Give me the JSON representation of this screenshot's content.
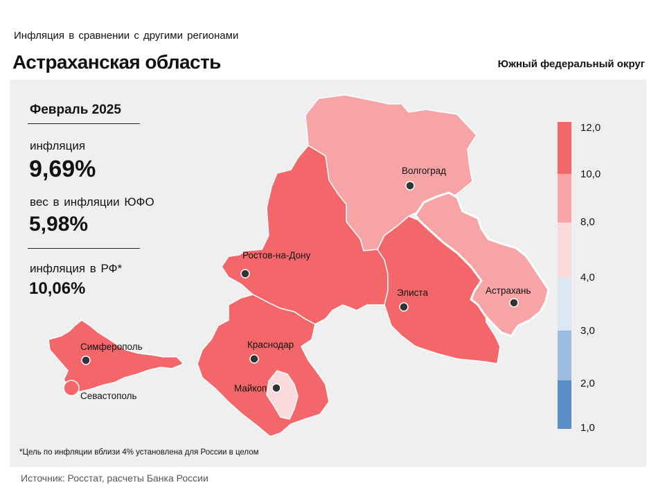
{
  "header": {
    "subtitle": "Инфляция  в сравнении  с другими  регионами",
    "title": "Астраханская область",
    "district": "Южный федеральный округ"
  },
  "stats": {
    "period": "Февраль 2025",
    "inflation_label": "инфляция",
    "inflation_value": "9,69%",
    "weight_label": "вес в инфляции  ЮФО",
    "weight_value": "5,98%",
    "russia_label": "инфляция  в РФ*",
    "russia_value": "10,06%"
  },
  "map": {
    "cities": [
      {
        "name": "Волгоград"
      },
      {
        "name": "Ростов-на-Дону"
      },
      {
        "name": "Элиста"
      },
      {
        "name": "Астрахань"
      },
      {
        "name": "Краснодар"
      },
      {
        "name": "Симферополь"
      },
      {
        "name": "Майкоп"
      },
      {
        "name": "Севастополь"
      }
    ]
  },
  "scale": {
    "ticks": [
      "12,0",
      "10,0",
      "8,0",
      "4,0",
      "3,0",
      "2,0",
      "1,0"
    ],
    "colors": [
      "#f3676a",
      "#f6a4a6",
      "#fadadc",
      "#dde6f4",
      "#9dbde0",
      "#5b8ec9"
    ]
  },
  "colors": {
    "high": "#f3676a",
    "mid": "#f6a4a6",
    "low": "#fadadc",
    "highlight_border": "#ffffff"
  },
  "footnote": "*Цель по инфляции вблизи 4% установлена для России в целом",
  "source": "Источник: Росстат, расчеты Банка России"
}
